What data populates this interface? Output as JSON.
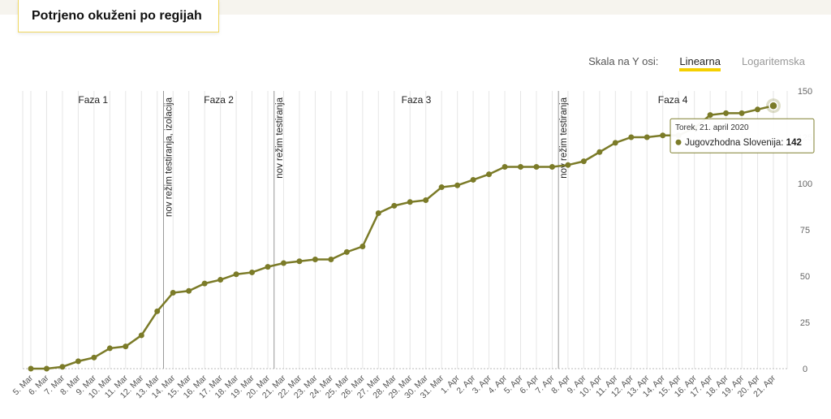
{
  "chart_data": {
    "type": "line",
    "title": "Potrjeno okuženi po regijah",
    "scale_label": "Skala na Y osi:",
    "scale_options": [
      "Linearna",
      "Logaritemska"
    ],
    "categories": [
      "5. Mar",
      "6. Mar",
      "7. Mar",
      "8. Mar",
      "9. Mar",
      "10. Mar",
      "11. Mar",
      "12. Mar",
      "13. Mar",
      "14. Mar",
      "15. Mar",
      "16. Mar",
      "17. Mar",
      "18. Mar",
      "19. Mar",
      "20. Mar",
      "21. Mar",
      "22. Mar",
      "23. Mar",
      "24. Mar",
      "25. Mar",
      "26. Mar",
      "27. Mar",
      "28. Mar",
      "29. Mar",
      "30. Mar",
      "31. Mar",
      "1. Apr",
      "2. Apr",
      "3. Apr",
      "4. Apr",
      "5. Apr",
      "6. Apr",
      "7. Apr",
      "8. Apr",
      "9. Apr",
      "10. Apr",
      "11. Apr",
      "12. Apr",
      "13. Apr",
      "14. Apr",
      "15. Apr",
      "16. Apr",
      "17. Apr",
      "18. Apr",
      "19. Apr",
      "20. Apr",
      "21. Apr"
    ],
    "series": [
      {
        "name": "Jugovzhodna Slovenija",
        "color": "#7b7b28",
        "values": [
          0,
          0,
          1,
          4,
          6,
          11,
          12,
          18,
          31,
          41,
          42,
          46,
          48,
          51,
          52,
          55,
          57,
          58,
          59,
          59,
          63,
          66,
          84,
          88,
          90,
          91,
          98,
          99,
          102,
          105,
          109,
          109,
          109,
          109,
          110,
          112,
          117,
          122,
          125,
          125,
          126,
          126,
          130,
          137,
          138,
          138,
          140,
          142
        ]
      }
    ],
    "ylim": [
      0,
      150
    ],
    "yticks": [
      0,
      25,
      50,
      75,
      100,
      125,
      150
    ],
    "phases": [
      "Faza 1",
      "Faza 2",
      "Faza 3",
      "Faza 4"
    ],
    "annotations": [
      {
        "label": "nov režim testiranja, izolacija",
        "after": "13. Mar"
      },
      {
        "label": "nov režim testiranja",
        "after": "20. Mar"
      },
      {
        "label": "nov režim testiranja",
        "after": "7. Apr"
      }
    ],
    "tooltip": {
      "date": "Torek, 21. april 2020"
    }
  }
}
